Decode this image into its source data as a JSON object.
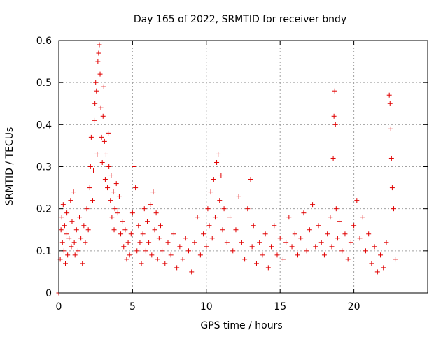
{
  "chart_data": {
    "type": "scatter",
    "title": "Day 165 of 2022, SRMTID for receiver bndy",
    "xlabel": "GPS time / hours",
    "ylabel": "SRMTID / TECUs",
    "xlim": [
      0,
      25
    ],
    "ylim": [
      0,
      0.6
    ],
    "xticks": [
      0,
      5,
      10,
      15,
      20
    ],
    "yticks": [
      0,
      0.1,
      0.2,
      0.3,
      0.4,
      0.5,
      0.6
    ],
    "grid": true,
    "marker": "plus",
    "series": [
      {
        "name": "SRMTID",
        "color": "#e00000",
        "points": [
          [
            0.0,
            0.0
          ],
          [
            0.02,
            0.0
          ],
          [
            0.1,
            0.08
          ],
          [
            0.15,
            0.15
          ],
          [
            0.2,
            0.18
          ],
          [
            0.25,
            0.12
          ],
          [
            0.3,
            0.21
          ],
          [
            0.35,
            0.1
          ],
          [
            0.4,
            0.16
          ],
          [
            0.45,
            0.07
          ],
          [
            0.5,
            0.14
          ],
          [
            0.55,
            0.19
          ],
          [
            0.6,
            0.09
          ],
          [
            0.7,
            0.13
          ],
          [
            0.8,
            0.22
          ],
          [
            0.85,
            0.11
          ],
          [
            0.9,
            0.17
          ],
          [
            1.0,
            0.24
          ],
          [
            1.05,
            0.12
          ],
          [
            1.1,
            0.09
          ],
          [
            1.2,
            0.15
          ],
          [
            1.3,
            0.1
          ],
          [
            1.4,
            0.18
          ],
          [
            1.5,
            0.13
          ],
          [
            1.6,
            0.07
          ],
          [
            1.7,
            0.16
          ],
          [
            1.8,
            0.12
          ],
          [
            1.9,
            0.2
          ],
          [
            2.0,
            0.15
          ],
          [
            2.1,
            0.25
          ],
          [
            2.15,
            0.3
          ],
          [
            2.2,
            0.37
          ],
          [
            2.3,
            0.22
          ],
          [
            2.35,
            0.29
          ],
          [
            2.4,
            0.41
          ],
          [
            2.45,
            0.45
          ],
          [
            2.5,
            0.5
          ],
          [
            2.55,
            0.48
          ],
          [
            2.6,
            0.33
          ],
          [
            2.65,
            0.55
          ],
          [
            2.7,
            0.57
          ],
          [
            2.75,
            0.59
          ],
          [
            2.8,
            0.52
          ],
          [
            2.85,
            0.44
          ],
          [
            2.9,
            0.37
          ],
          [
            2.95,
            0.31
          ],
          [
            3.0,
            0.42
          ],
          [
            3.05,
            0.49
          ],
          [
            3.1,
            0.36
          ],
          [
            3.15,
            0.27
          ],
          [
            3.2,
            0.33
          ],
          [
            3.3,
            0.25
          ],
          [
            3.35,
            0.38
          ],
          [
            3.4,
            0.3
          ],
          [
            3.5,
            0.22
          ],
          [
            3.55,
            0.28
          ],
          [
            3.6,
            0.18
          ],
          [
            3.7,
            0.24
          ],
          [
            3.75,
            0.15
          ],
          [
            3.8,
            0.2
          ],
          [
            3.9,
            0.26
          ],
          [
            4.0,
            0.19
          ],
          [
            4.1,
            0.23
          ],
          [
            4.2,
            0.14
          ],
          [
            4.3,
            0.17
          ],
          [
            4.4,
            0.11
          ],
          [
            4.5,
            0.15
          ],
          [
            4.6,
            0.08
          ],
          [
            4.7,
            0.12
          ],
          [
            4.8,
            0.09
          ],
          [
            4.9,
            0.14
          ],
          [
            5.0,
            0.19
          ],
          [
            5.1,
            0.3
          ],
          [
            5.2,
            0.25
          ],
          [
            5.3,
            0.1
          ],
          [
            5.4,
            0.16
          ],
          [
            5.5,
            0.12
          ],
          [
            5.6,
            0.07
          ],
          [
            5.7,
            0.14
          ],
          [
            5.8,
            0.2
          ],
          [
            5.9,
            0.1
          ],
          [
            6.0,
            0.17
          ],
          [
            6.1,
            0.12
          ],
          [
            6.2,
            0.21
          ],
          [
            6.3,
            0.09
          ],
          [
            6.4,
            0.24
          ],
          [
            6.5,
            0.15
          ],
          [
            6.6,
            0.19
          ],
          [
            6.7,
            0.08
          ],
          [
            6.8,
            0.13
          ],
          [
            6.9,
            0.16
          ],
          [
            7.0,
            0.1
          ],
          [
            7.2,
            0.07
          ],
          [
            7.4,
            0.12
          ],
          [
            7.6,
            0.09
          ],
          [
            7.8,
            0.14
          ],
          [
            8.0,
            0.06
          ],
          [
            8.2,
            0.11
          ],
          [
            8.4,
            0.08
          ],
          [
            8.6,
            0.13
          ],
          [
            8.8,
            0.1
          ],
          [
            9.0,
            0.05
          ],
          [
            9.2,
            0.12
          ],
          [
            9.4,
            0.18
          ],
          [
            9.6,
            0.09
          ],
          [
            9.8,
            0.14
          ],
          [
            10.0,
            0.11
          ],
          [
            10.1,
            0.2
          ],
          [
            10.2,
            0.16
          ],
          [
            10.3,
            0.24
          ],
          [
            10.4,
            0.13
          ],
          [
            10.5,
            0.27
          ],
          [
            10.6,
            0.18
          ],
          [
            10.7,
            0.31
          ],
          [
            10.8,
            0.33
          ],
          [
            10.9,
            0.22
          ],
          [
            11.0,
            0.28
          ],
          [
            11.1,
            0.15
          ],
          [
            11.2,
            0.2
          ],
          [
            11.4,
            0.12
          ],
          [
            11.6,
            0.18
          ],
          [
            11.8,
            0.1
          ],
          [
            12.0,
            0.15
          ],
          [
            12.2,
            0.23
          ],
          [
            12.4,
            0.12
          ],
          [
            12.6,
            0.08
          ],
          [
            12.8,
            0.2
          ],
          [
            13.0,
            0.27
          ],
          [
            13.1,
            0.11
          ],
          [
            13.2,
            0.16
          ],
          [
            13.4,
            0.07
          ],
          [
            13.6,
            0.12
          ],
          [
            13.8,
            0.09
          ],
          [
            14.0,
            0.14
          ],
          [
            14.2,
            0.06
          ],
          [
            14.4,
            0.11
          ],
          [
            14.6,
            0.16
          ],
          [
            14.8,
            0.09
          ],
          [
            15.0,
            0.13
          ],
          [
            15.2,
            0.08
          ],
          [
            15.4,
            0.12
          ],
          [
            15.6,
            0.18
          ],
          [
            15.8,
            0.11
          ],
          [
            16.0,
            0.14
          ],
          [
            16.2,
            0.09
          ],
          [
            16.4,
            0.13
          ],
          [
            16.6,
            0.19
          ],
          [
            16.8,
            0.1
          ],
          [
            17.0,
            0.15
          ],
          [
            17.2,
            0.21
          ],
          [
            17.4,
            0.11
          ],
          [
            17.6,
            0.16
          ],
          [
            17.8,
            0.12
          ],
          [
            18.0,
            0.09
          ],
          [
            18.2,
            0.14
          ],
          [
            18.4,
            0.18
          ],
          [
            18.5,
            0.11
          ],
          [
            18.6,
            0.32
          ],
          [
            18.65,
            0.42
          ],
          [
            18.7,
            0.48
          ],
          [
            18.75,
            0.4
          ],
          [
            18.8,
            0.2
          ],
          [
            18.9,
            0.13
          ],
          [
            19.0,
            0.17
          ],
          [
            19.2,
            0.1
          ],
          [
            19.4,
            0.14
          ],
          [
            19.6,
            0.08
          ],
          [
            19.8,
            0.12
          ],
          [
            20.0,
            0.16
          ],
          [
            20.2,
            0.22
          ],
          [
            20.4,
            0.13
          ],
          [
            20.6,
            0.18
          ],
          [
            20.8,
            0.1
          ],
          [
            21.0,
            0.14
          ],
          [
            21.2,
            0.07
          ],
          [
            21.4,
            0.11
          ],
          [
            21.6,
            0.05
          ],
          [
            21.8,
            0.09
          ],
          [
            22.0,
            0.06
          ],
          [
            22.2,
            0.12
          ],
          [
            22.4,
            0.47
          ],
          [
            22.45,
            0.45
          ],
          [
            22.5,
            0.39
          ],
          [
            22.55,
            0.32
          ],
          [
            22.6,
            0.25
          ],
          [
            22.7,
            0.2
          ],
          [
            22.8,
            0.08
          ]
        ]
      }
    ]
  }
}
